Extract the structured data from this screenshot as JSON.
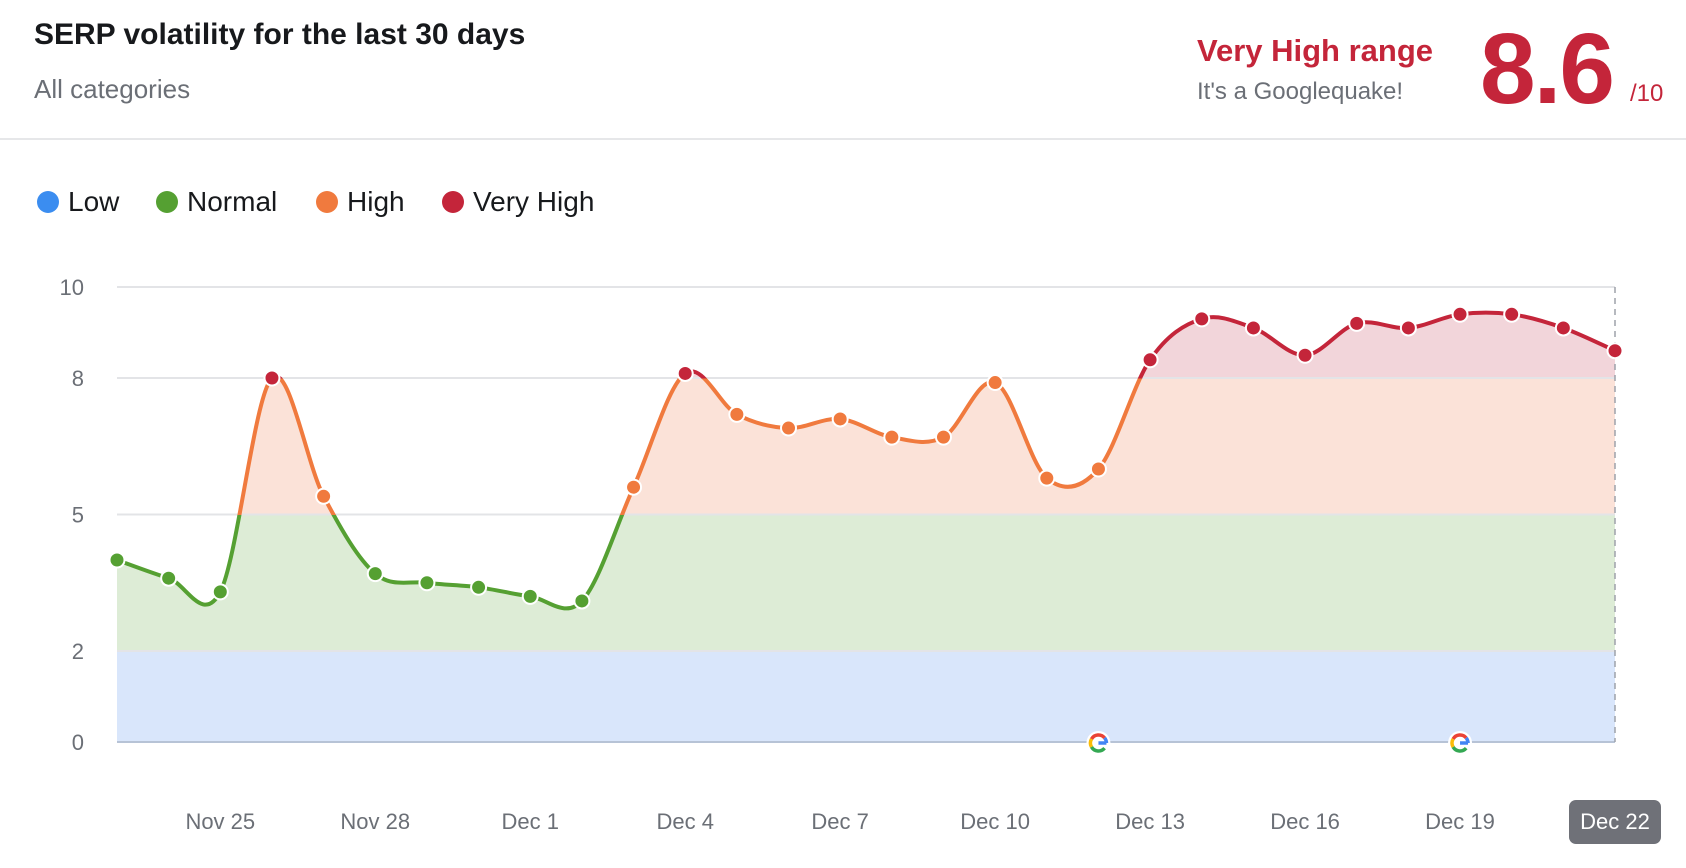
{
  "header": {
    "title": "SERP volatility for the last 30 days",
    "subtitle": "All categories",
    "range_label": "Very High range",
    "range_tagline": "It's a Googlequake!",
    "score": "8.6",
    "score_max": "/10"
  },
  "chart_data": {
    "type": "line",
    "title": "SERP volatility for the last 30 days",
    "x": [
      "Nov 23",
      "Nov 24",
      "Nov 25",
      "Nov 26",
      "Nov 27",
      "Nov 28",
      "Nov 29",
      "Nov 30",
      "Dec 1",
      "Dec 2",
      "Dec 3",
      "Dec 4",
      "Dec 5",
      "Dec 6",
      "Dec 7",
      "Dec 8",
      "Dec 9",
      "Dec 10",
      "Dec 11",
      "Dec 12",
      "Dec 13",
      "Dec 14",
      "Dec 15",
      "Dec 16",
      "Dec 17",
      "Dec 18",
      "Dec 19",
      "Dec 20",
      "Dec 21",
      "Dec 22"
    ],
    "values": [
      4.0,
      3.6,
      3.3,
      8.0,
      5.4,
      3.7,
      3.5,
      3.4,
      3.2,
      3.1,
      5.6,
      8.1,
      7.2,
      6.9,
      7.1,
      6.7,
      6.7,
      7.9,
      5.8,
      6.0,
      8.4,
      9.3,
      9.1,
      8.5,
      9.2,
      9.1,
      9.4,
      9.4,
      9.1,
      8.6
    ],
    "ylim": [
      0,
      10
    ],
    "y_ticks": [
      "0",
      "2",
      "5",
      "8",
      "10"
    ],
    "x_tick_labels": [
      "Nov 25",
      "Nov 28",
      "Dec 1",
      "Dec 4",
      "Dec 7",
      "Dec 10",
      "Dec 13",
      "Dec 16",
      "Dec 19",
      "Dec 22"
    ],
    "highlighted_x": "Dec 22",
    "google_update_markers": [
      "Dec 12",
      "Dec 19"
    ],
    "bands": [
      {
        "name": "Low",
        "from": 0,
        "to": 2,
        "color": "#3b8df0",
        "fill": "#d9e6fb"
      },
      {
        "name": "Normal",
        "from": 2,
        "to": 5,
        "color": "#55a032",
        "fill": "#ddecd6"
      },
      {
        "name": "High",
        "from": 5,
        "to": 8,
        "color": "#f07a3e",
        "fill": "#fbe2d8"
      },
      {
        "name": "Very High",
        "from": 8,
        "to": 10,
        "color": "#c4253a",
        "fill": "#f2d5da"
      }
    ],
    "legend": [
      "Low",
      "Normal",
      "High",
      "Very High"
    ],
    "legend_position": "top-left",
    "grid": true
  }
}
